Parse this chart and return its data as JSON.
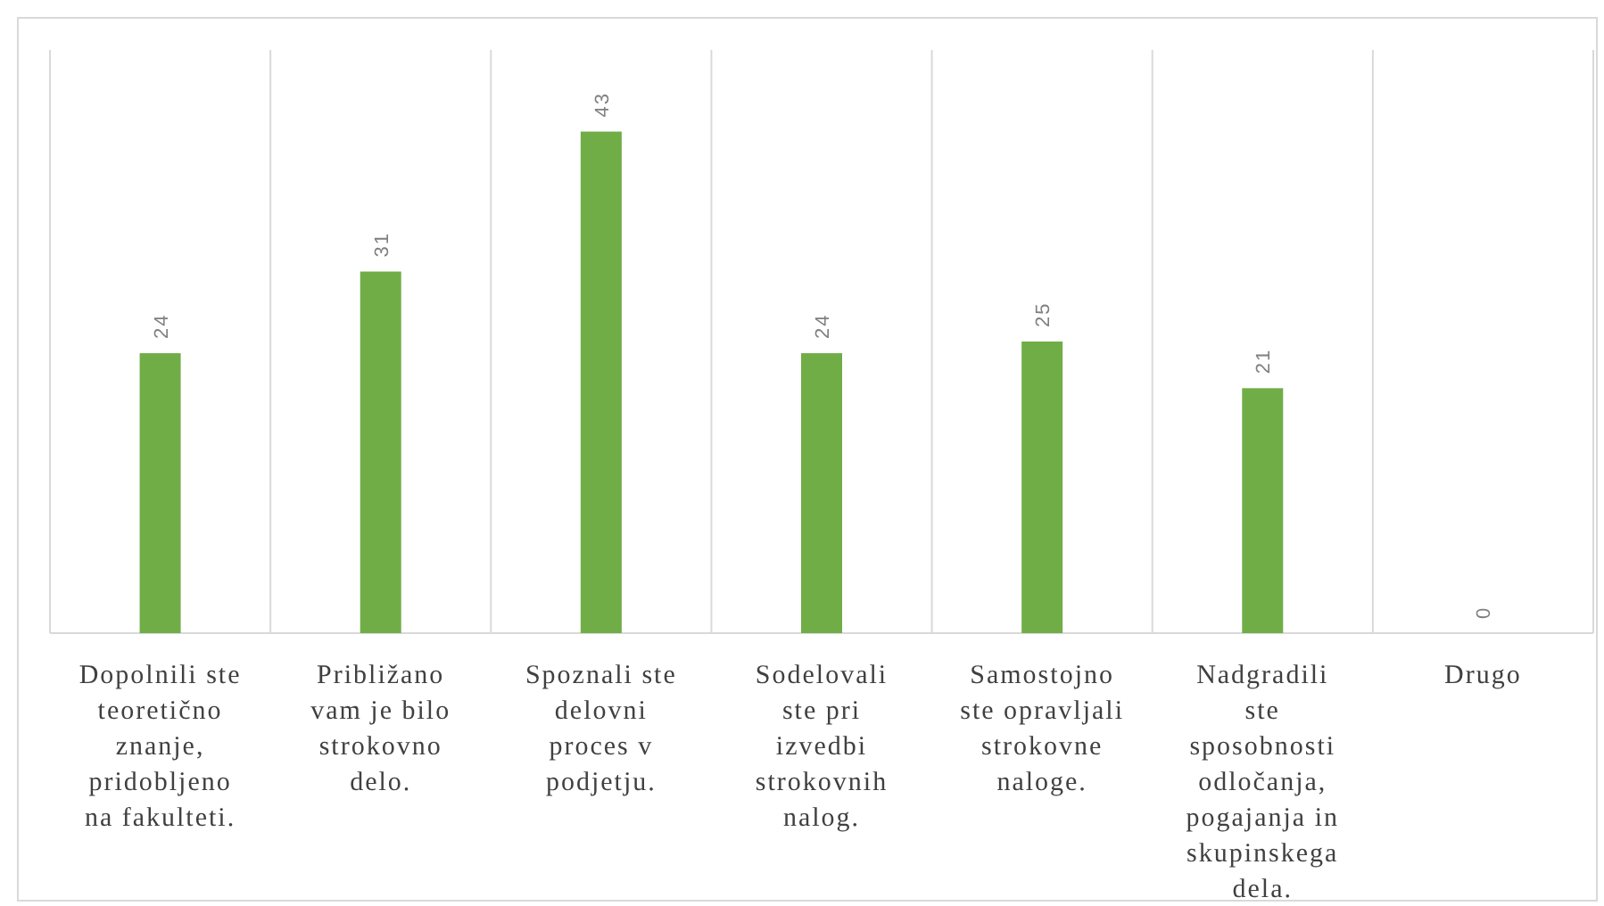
{
  "chart_data": {
    "type": "bar",
    "categories": [
      "Dopolnili ste teoretično znanje, pridobljeno na fakulteti.",
      "Približano vam je bilo strokovno delo.",
      "Spoznali ste delovni proces v podjetju.",
      "Sodelovali ste pri izvedbi strokovnih nalog.",
      "Samostojno ste opravljali strokovne naloge.",
      "Nadgradili ste sposobnosti odločanja, pogajanja in skupinskega dela.",
      "Drugo"
    ],
    "values": [
      24,
      31,
      43,
      24,
      25,
      21,
      0
    ],
    "color": "#70ad47",
    "ylim": [
      0,
      50
    ],
    "data_labels": true,
    "grid": "x"
  }
}
